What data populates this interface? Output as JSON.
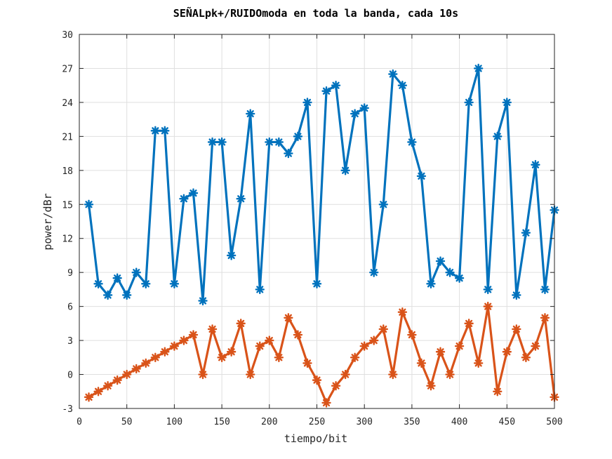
{
  "chart_data": {
    "type": "line",
    "title": "SEÑALpk+/RUIDOmoda en toda la banda, cada 10s",
    "xlabel": "tiempo/bit",
    "ylabel": "power/dBr",
    "xlim": [
      0,
      500
    ],
    "ylim": [
      -3,
      30
    ],
    "xticks": [
      0,
      50,
      100,
      150,
      200,
      250,
      300,
      350,
      400,
      450,
      500
    ],
    "yticks": [
      -3,
      0,
      3,
      6,
      9,
      12,
      15,
      18,
      21,
      24,
      27,
      30
    ],
    "grid": true,
    "marker": "asterisk",
    "x": [
      10,
      20,
      30,
      40,
      50,
      60,
      70,
      80,
      90,
      100,
      110,
      120,
      130,
      140,
      150,
      160,
      170,
      180,
      190,
      200,
      210,
      220,
      230,
      240,
      250,
      260,
      270,
      280,
      290,
      300,
      310,
      320,
      330,
      340,
      350,
      360,
      370,
      380,
      390,
      400,
      410,
      420,
      430,
      440,
      450,
      460,
      470,
      480,
      490,
      500
    ],
    "series": [
      {
        "color": "#0072bd",
        "values": [
          15,
          8,
          7,
          8.5,
          7,
          9,
          8,
          21.5,
          21.5,
          8,
          15.5,
          16,
          6.5,
          20.5,
          20.5,
          10.5,
          15.5,
          23,
          7.5,
          20.5,
          20.5,
          19.5,
          21,
          24,
          8,
          25,
          25.5,
          18,
          23,
          23.5,
          9,
          15,
          26.5,
          25.5,
          20.5,
          17.5,
          8,
          10,
          9,
          8.5,
          24,
          27,
          7.5,
          21,
          24,
          7,
          12.5,
          18.5,
          7.5,
          14.5
        ]
      },
      {
        "color": "#d95319",
        "values": [
          -2,
          -1.5,
          -1,
          -0.5,
          0,
          0.5,
          1,
          1.5,
          2,
          2.5,
          3,
          3.5,
          0,
          4,
          1.5,
          2,
          4.5,
          0,
          2.5,
          3,
          1.5,
          5,
          3.5,
          1,
          -0.5,
          -2.5,
          -1,
          0,
          1.5,
          2.5,
          3,
          4,
          0,
          5.5,
          3.5,
          1,
          -1,
          2,
          0,
          2.5,
          4.5,
          1,
          6,
          -1.5,
          2,
          4,
          1.5,
          2.5,
          5,
          -2
        ]
      }
    ]
  }
}
